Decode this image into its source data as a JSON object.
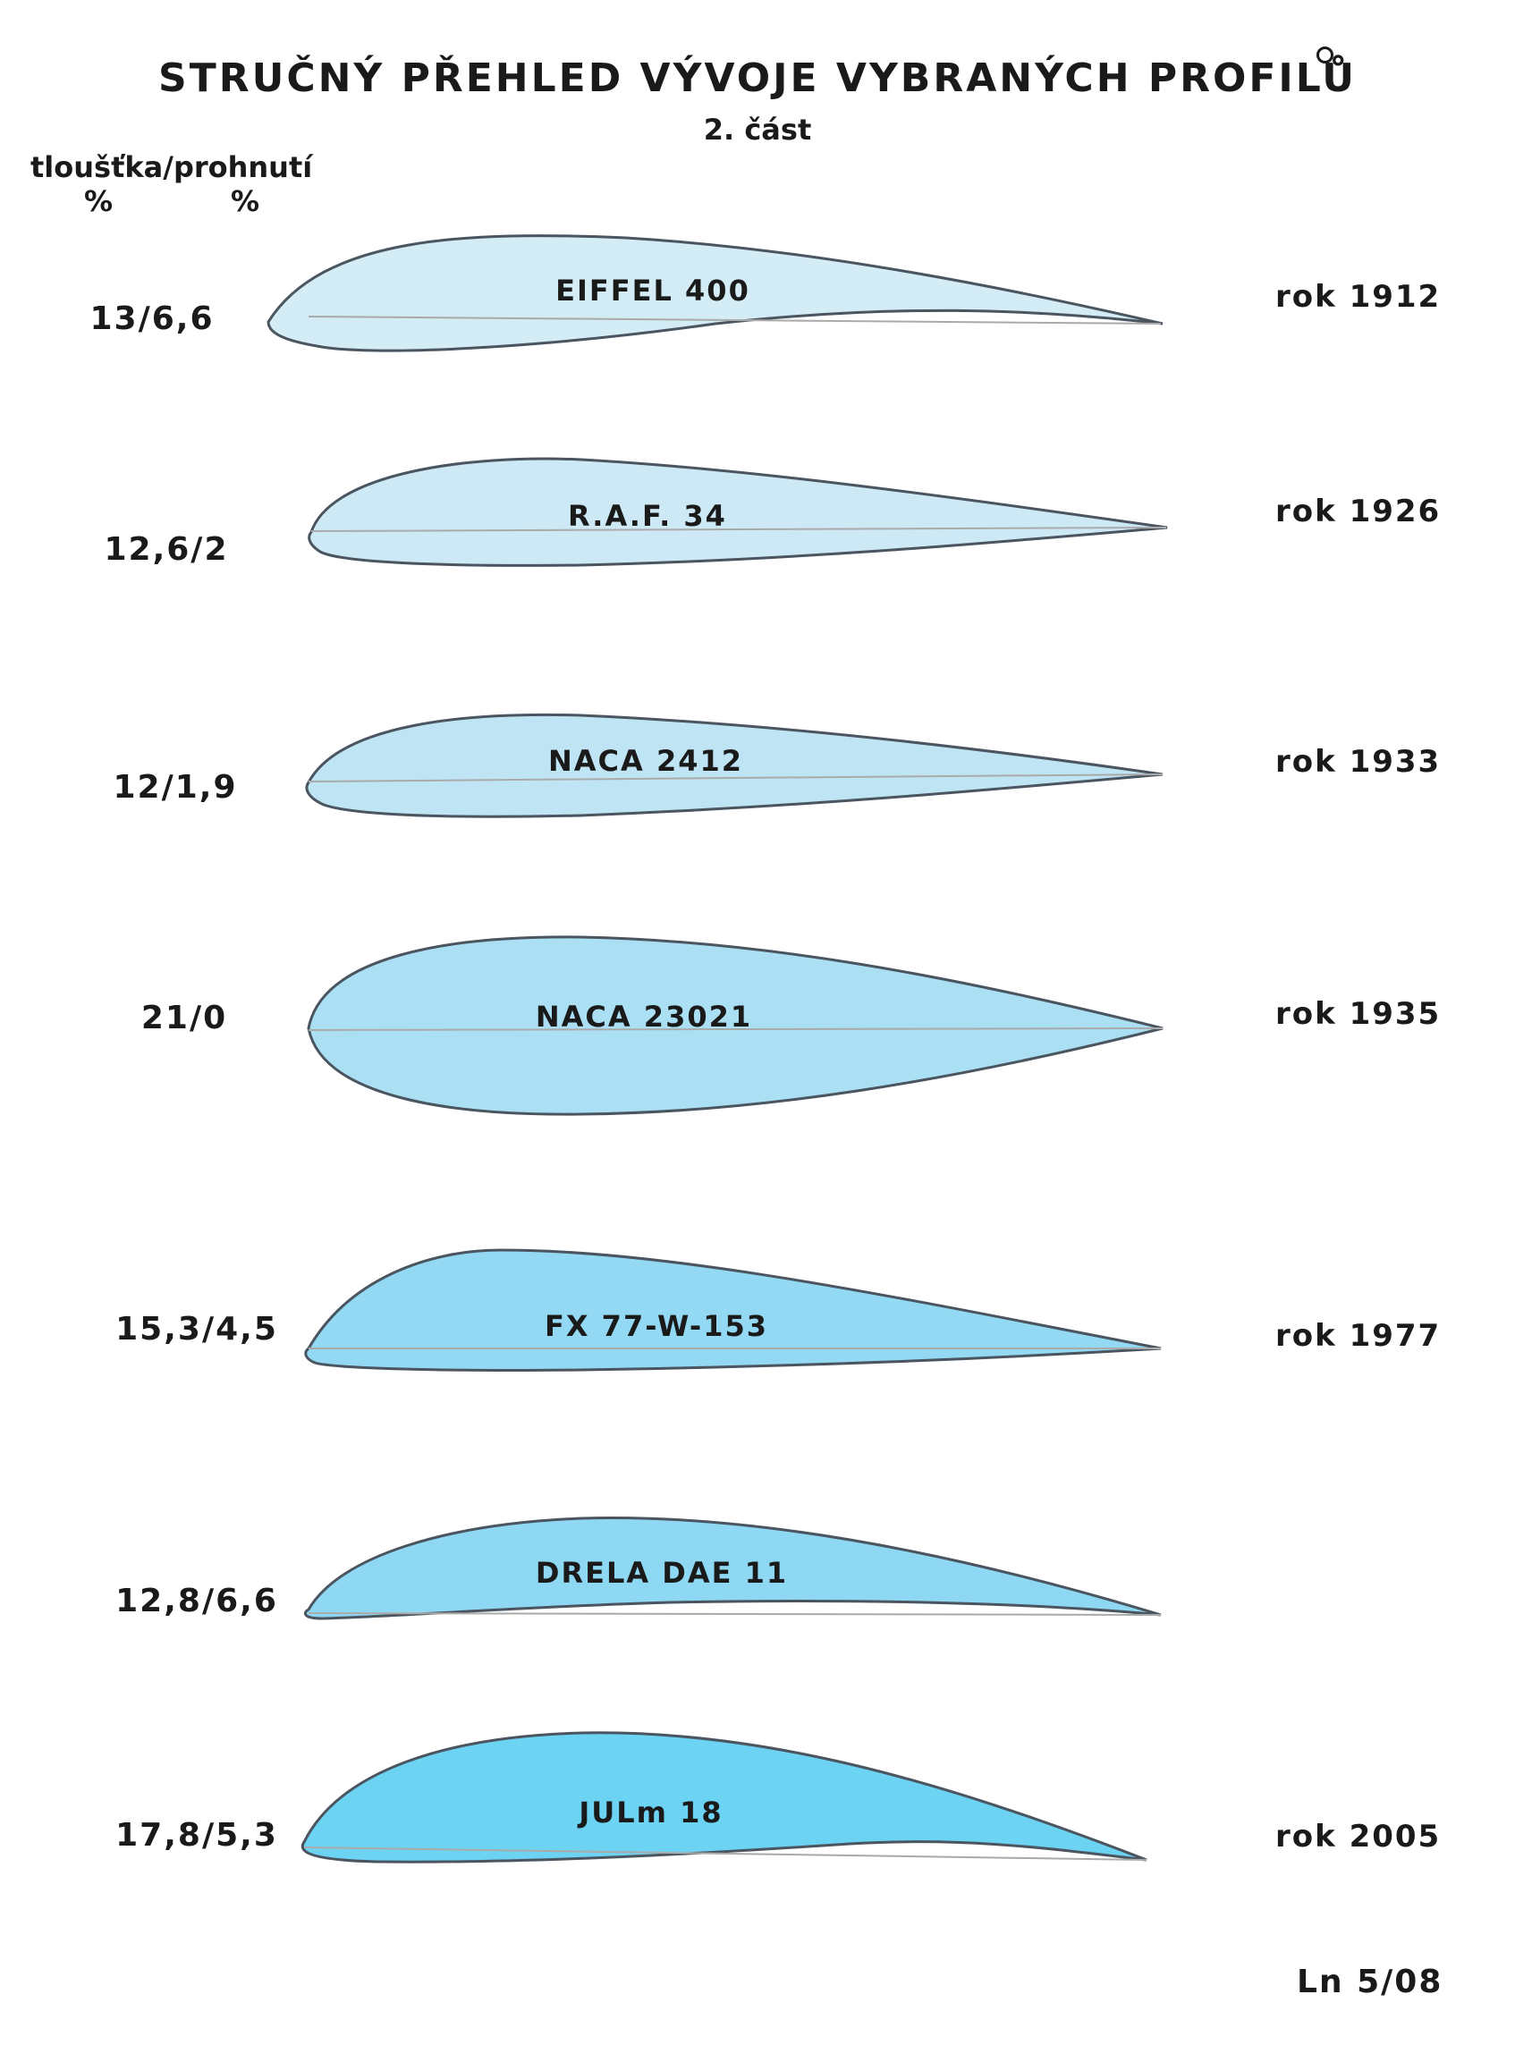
{
  "title": "STRUČNÝ PŘEHLED VÝVOJE VYBRANÝCH PROFILŮ",
  "subtitle": "2. část",
  "column_header": "tloušťka/prohnutí",
  "units": [
    "%",
    "%"
  ],
  "profiles": [
    {
      "name": "EIFFEL  400",
      "ratio": "13/6,6",
      "year": "rok  1912",
      "fill": "#d3ecf6"
    },
    {
      "name": "R.A.F.  34",
      "ratio": "12,6/2",
      "year": "rok  1926",
      "fill": "#cde9f5"
    },
    {
      "name": "NACA  2412",
      "ratio": "12/1,9",
      "year": "rok  1933",
      "fill": "#bfe5f5"
    },
    {
      "name": "NACA  23021",
      "ratio": "21/0",
      "year": "rok  1935",
      "fill": "#abe0f4"
    },
    {
      "name": "FX 77-W-153",
      "ratio": "15,3/4,5",
      "year": "rok  1977",
      "fill": "#93d9f3"
    },
    {
      "name": "DRELA DAE  11",
      "ratio": "12,8/6,6",
      "year": "",
      "fill": "#8fd8f4"
    },
    {
      "name": "JULm  18",
      "ratio": "17,8/5,3",
      "year": "rok  2005",
      "fill": "#6dd3f3"
    }
  ],
  "footer": "Ln 5/08"
}
